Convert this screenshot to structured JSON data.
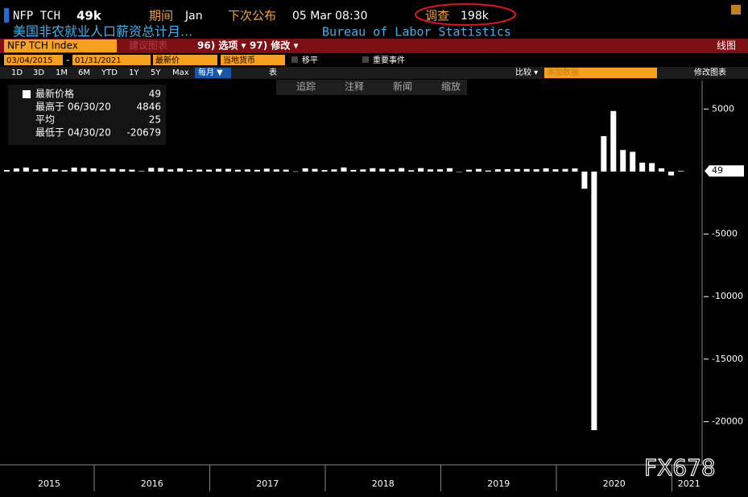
{
  "header": {
    "ticker": "NFP TCH",
    "value": "49k",
    "period_label": "期间",
    "period": "Jan",
    "next_label": "下次公布",
    "next": "05 Mar 08:30",
    "survey_label": "调查",
    "survey": "198k",
    "description": "美国非农就业人口薪资总计月...",
    "source": "Bureau of Labor Statistics"
  },
  "toolbar": {
    "security": "NFP TCH Index",
    "suggest": "建议图表",
    "options": "96) 选项 ▾",
    "modify": "97) 修改 ▾",
    "chart_kind": "线图",
    "start": "03/04/2015",
    "dash": "-",
    "end": "01/31/2021",
    "price": "最新价",
    "currency": "当地货币",
    "smooth": "移平",
    "events": "重要事件",
    "ranges": [
      "1D",
      "3D",
      "1M",
      "6M",
      "YTD",
      "1Y",
      "5Y",
      "Max"
    ],
    "freq": "每月 ▼",
    "table": "表",
    "compare": "比较 ▾",
    "add_data": "添加数据",
    "edit_chart": "修改图表"
  },
  "chart_tools": [
    "追踪",
    "注释",
    "新闻",
    "缩放"
  ],
  "legend": {
    "rows": [
      {
        "label": "最新价格",
        "value": 49
      },
      {
        "label": "最高于 06/30/20",
        "value": 4846
      },
      {
        "label": "平均",
        "value": 25
      },
      {
        "label": "最低于 04/30/20",
        "value": -20679
      }
    ]
  },
  "watermark": "FX678",
  "chart_data": {
    "type": "bar",
    "color": "#ffffff",
    "values": [
      119,
      251,
      326,
      170,
      265,
      174,
      113,
      318,
      292,
      254,
      168,
      237,
      186,
      153,
      43,
      297,
      291,
      176,
      249,
      124,
      164,
      155,
      216,
      219,
      147,
      175,
      144,
      231,
      173,
      155,
      18,
      261,
      216,
      120,
      176,
      330,
      135,
      175,
      270,
      235,
      178,
      282,
      108,
      277,
      176,
      182,
      269,
      1,
      147,
      210,
      85,
      182,
      194,
      207,
      208,
      185,
      261,
      184,
      214,
      251,
      -1373,
      -20679,
      2833,
      4846,
      1726,
      1583,
      716,
      680,
      264,
      -306,
      49
    ],
    "years": [
      "2015",
      "2016",
      "2017",
      "2018",
      "2019",
      "2020",
      "2021"
    ],
    "ylim": [
      -23450,
      7280
    ],
    "yticks": [
      5000,
      -5000,
      -10000,
      -15000,
      -20000
    ],
    "last_value_flag": true
  }
}
